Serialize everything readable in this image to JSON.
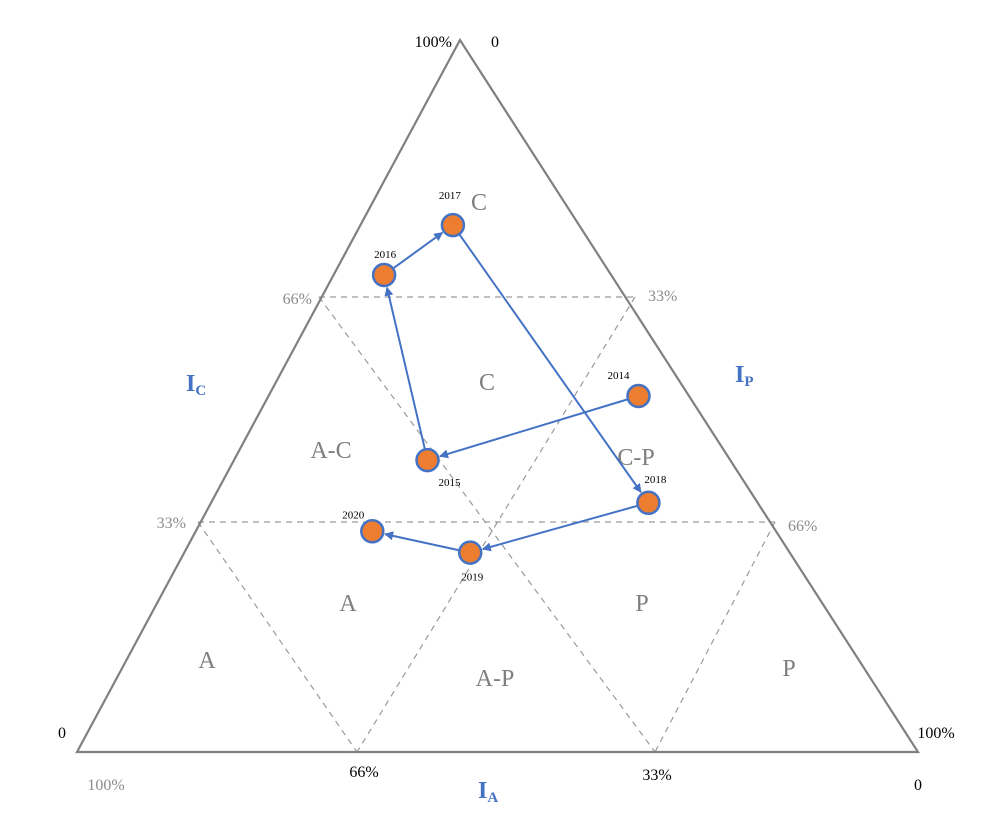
{
  "chart_data": {
    "type": "scatter",
    "subtype": "ternary",
    "axes": {
      "IC": {
        "label": "I",
        "sub": "C"
      },
      "IP": {
        "label": "I",
        "sub": "P"
      },
      "IA": {
        "label": "I",
        "sub": "A"
      }
    },
    "corner_labels": {
      "top_left": "100%",
      "top_right": "0",
      "left": "0",
      "right_top": "100%",
      "bottom_left": "100%",
      "bottom_right": "0"
    },
    "left_ticks": [
      "66%",
      "33%"
    ],
    "right_ticks": [
      "33%",
      "66%"
    ],
    "bottom_ticks": [
      "66%",
      "33%"
    ],
    "zones": [
      "C",
      "C",
      "A-C",
      "C-P",
      "A",
      "P",
      "A",
      "A-P",
      "P"
    ],
    "points": [
      {
        "year": "2014",
        "IC": 0.5,
        "IP": 0.44,
        "IA": 0.06
      },
      {
        "year": "2015",
        "IC": 0.41,
        "IP": 0.23,
        "IA": 0.36
      },
      {
        "year": "2016",
        "IC": 0.67,
        "IP": 0.06,
        "IA": 0.27
      },
      {
        "year": "2017",
        "IC": 0.74,
        "IP": 0.11,
        "IA": 0.15
      },
      {
        "year": "2018",
        "IC": 0.35,
        "IP": 0.52,
        "IA": 0.13
      },
      {
        "year": "2019",
        "IC": 0.28,
        "IP": 0.34,
        "IA": 0.38
      },
      {
        "year": "2020",
        "IC": 0.31,
        "IP": 0.21,
        "IA": 0.48
      }
    ],
    "path": [
      "2014",
      "2015",
      "2016",
      "2017",
      "2018",
      "2019",
      "2020"
    ],
    "colors": {
      "triangle": "#808080",
      "grid": "#9a9a9a",
      "point_fill": "#ed7d31",
      "point_stroke": "#4472c4",
      "arrow": "#4472c4",
      "axis_label": "#4472c4"
    }
  }
}
